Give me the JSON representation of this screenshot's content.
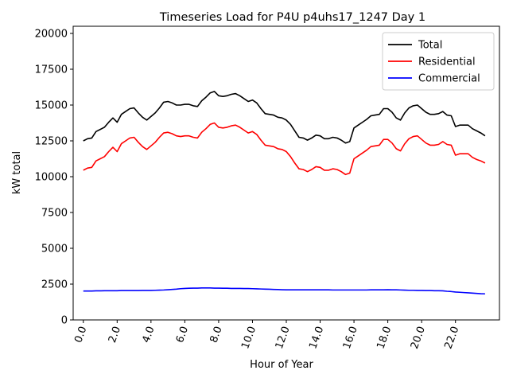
{
  "chart_data": {
    "type": "line",
    "title": "Timeseries Load for P4U p4uhs17_1247  Day 1",
    "xlabel": "Hour of Year",
    "ylabel": "kW total",
    "xlim": [
      -0.6,
      24.6
    ],
    "ylim": [
      0,
      20500
    ],
    "grid": false,
    "legend_position": "top-right",
    "x_ticks": [
      0,
      2,
      4,
      6,
      8,
      10,
      12,
      14,
      16,
      18,
      20,
      22
    ],
    "x_tick_labels": [
      "0.0",
      "2.0",
      "4.0",
      "6.0",
      "8.0",
      "10.0",
      "12.0",
      "14.0",
      "16.0",
      "18.0",
      "20.0",
      "22.0"
    ],
    "y_ticks": [
      0,
      2500,
      5000,
      7500,
      10000,
      12500,
      15000,
      17500,
      20000
    ],
    "y_tick_labels": [
      "0",
      "2500",
      "5000",
      "7500",
      "10000",
      "12500",
      "15000",
      "17500",
      "20000"
    ],
    "x": [
      0.0,
      0.25,
      0.5,
      0.75,
      1.0,
      1.25,
      1.5,
      1.75,
      2.0,
      2.25,
      2.5,
      2.75,
      3.0,
      3.25,
      3.5,
      3.75,
      4.0,
      4.25,
      4.5,
      4.75,
      5.0,
      5.25,
      5.5,
      5.75,
      6.0,
      6.25,
      6.5,
      6.75,
      7.0,
      7.25,
      7.5,
      7.75,
      8.0,
      8.25,
      8.5,
      8.75,
      9.0,
      9.25,
      9.5,
      9.75,
      10.0,
      10.25,
      10.5,
      10.75,
      11.0,
      11.25,
      11.5,
      11.75,
      12.0,
      12.25,
      12.5,
      12.75,
      13.0,
      13.25,
      13.5,
      13.75,
      14.0,
      14.25,
      14.5,
      14.75,
      15.0,
      15.25,
      15.5,
      15.75,
      16.0,
      16.25,
      16.5,
      16.75,
      17.0,
      17.25,
      17.5,
      17.75,
      18.0,
      18.25,
      18.5,
      18.75,
      19.0,
      19.25,
      19.5,
      19.75,
      20.0,
      20.25,
      20.5,
      20.75,
      21.0,
      21.25,
      21.5,
      21.75,
      22.0,
      22.25,
      22.5,
      22.75,
      23.0,
      23.25,
      23.5,
      23.75
    ],
    "series": [
      {
        "name": "Total",
        "color": "#000000",
        "values": [
          12500,
          12650,
          12700,
          13150,
          13300,
          13450,
          13800,
          14100,
          13800,
          14350,
          14550,
          14750,
          14800,
          14450,
          14150,
          13950,
          14200,
          14450,
          14800,
          15200,
          15250,
          15150,
          15000,
          15000,
          15050,
          15050,
          14950,
          14900,
          15300,
          15550,
          15850,
          15950,
          15650,
          15600,
          15650,
          15750,
          15800,
          15650,
          15450,
          15250,
          15350,
          15150,
          14750,
          14400,
          14350,
          14300,
          14150,
          14100,
          13950,
          13650,
          13200,
          12750,
          12700,
          12550,
          12700,
          12900,
          12850,
          12650,
          12650,
          12750,
          12700,
          12550,
          12350,
          12450,
          13400,
          13600,
          13800,
          14000,
          14250,
          14300,
          14350,
          14750,
          14750,
          14500,
          14100,
          13950,
          14450,
          14800,
          14950,
          15000,
          14750,
          14500,
          14350,
          14350,
          14400,
          14550,
          14300,
          14250,
          13500,
          13600,
          13600,
          13600,
          13350,
          13200,
          13050,
          12850
        ]
      },
      {
        "name": "Residential",
        "color": "#ff0000",
        "values": [
          10450,
          10600,
          10650,
          11100,
          11250,
          11400,
          11750,
          12050,
          11750,
          12300,
          12500,
          12700,
          12750,
          12400,
          12100,
          11900,
          12150,
          12400,
          12750,
          13050,
          13100,
          13000,
          12850,
          12800,
          12850,
          12850,
          12750,
          12700,
          13100,
          13350,
          13650,
          13750,
          13450,
          13400,
          13450,
          13550,
          13600,
          13450,
          13250,
          13050,
          13150,
          12950,
          12550,
          12200,
          12150,
          12100,
          11950,
          11900,
          11750,
          11400,
          10950,
          10550,
          10500,
          10350,
          10500,
          10700,
          10650,
          10450,
          10450,
          10550,
          10500,
          10350,
          10150,
          10250,
          11250,
          11450,
          11650,
          11850,
          12100,
          12150,
          12200,
          12600,
          12600,
          12350,
          11950,
          11800,
          12300,
          12650,
          12800,
          12850,
          12600,
          12350,
          12200,
          12200,
          12250,
          12450,
          12250,
          12200,
          11500,
          11600,
          11600,
          11600,
          11350,
          11200,
          11100,
          10950
        ]
      },
      {
        "name": "Commercial",
        "color": "#0000ff",
        "values": [
          2020,
          2020,
          2020,
          2030,
          2030,
          2040,
          2040,
          2040,
          2040,
          2050,
          2050,
          2050,
          2050,
          2050,
          2060,
          2060,
          2060,
          2070,
          2080,
          2090,
          2110,
          2130,
          2150,
          2180,
          2200,
          2210,
          2220,
          2220,
          2230,
          2230,
          2230,
          2220,
          2220,
          2210,
          2210,
          2200,
          2200,
          2200,
          2190,
          2190,
          2180,
          2170,
          2160,
          2150,
          2140,
          2130,
          2120,
          2110,
          2100,
          2100,
          2100,
          2100,
          2100,
          2100,
          2100,
          2100,
          2100,
          2100,
          2100,
          2090,
          2090,
          2090,
          2090,
          2090,
          2090,
          2090,
          2090,
          2090,
          2100,
          2100,
          2100,
          2100,
          2110,
          2100,
          2100,
          2090,
          2080,
          2070,
          2070,
          2060,
          2060,
          2050,
          2050,
          2040,
          2040,
          2030,
          2000,
          1980,
          1950,
          1930,
          1910,
          1890,
          1870,
          1850,
          1830,
          1820
        ]
      }
    ]
  }
}
